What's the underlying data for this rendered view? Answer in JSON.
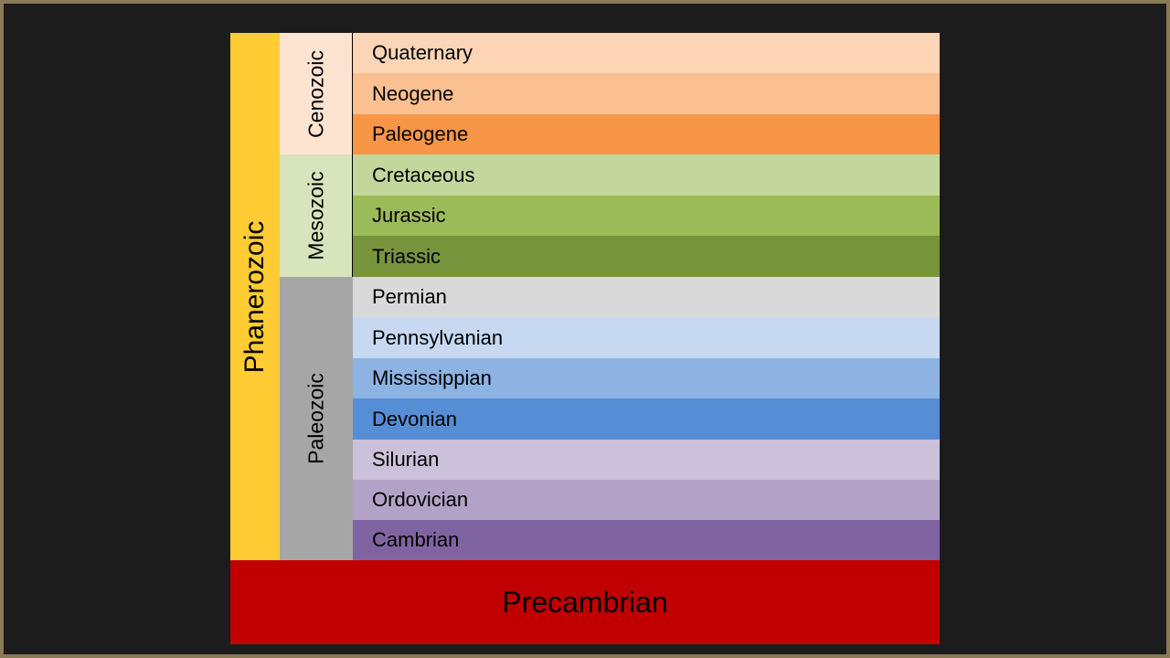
{
  "eons": {
    "phanerozoic": {
      "label": "Phanerozoic",
      "color": "#FFCC33"
    },
    "precambrian": {
      "label": "Precambrian",
      "color": "#C00000"
    }
  },
  "eras": [
    {
      "label": "Cenozoic",
      "color": "#FDE4D0"
    },
    {
      "label": "Mesozoic",
      "color": "#D8E4BC"
    },
    {
      "label": "Paleozoic",
      "color": "#A6A6A6"
    }
  ],
  "periods": [
    {
      "label": "Quaternary",
      "color": "#FBD5B5"
    },
    {
      "label": "Neogene",
      "color": "#FAC090"
    },
    {
      "label": "Paleogene",
      "color": "#F79646"
    },
    {
      "label": "Cretaceous",
      "color": "#C3D69B"
    },
    {
      "label": "Jurassic",
      "color": "#9BBB59"
    },
    {
      "label": "Triassic",
      "color": "#77933C"
    },
    {
      "label": "Permian",
      "color": "#D9D9D9"
    },
    {
      "label": "Pennsylvanian",
      "color": "#C6D9F1"
    },
    {
      "label": "Mississippian",
      "color": "#8DB3E2"
    },
    {
      "label": "Devonian",
      "color": "#558ED5"
    },
    {
      "label": "Silurian",
      "color": "#CCC1DA"
    },
    {
      "label": "Ordovician",
      "color": "#B3A2C7"
    },
    {
      "label": "Cambrian",
      "color": "#8064A2"
    }
  ]
}
